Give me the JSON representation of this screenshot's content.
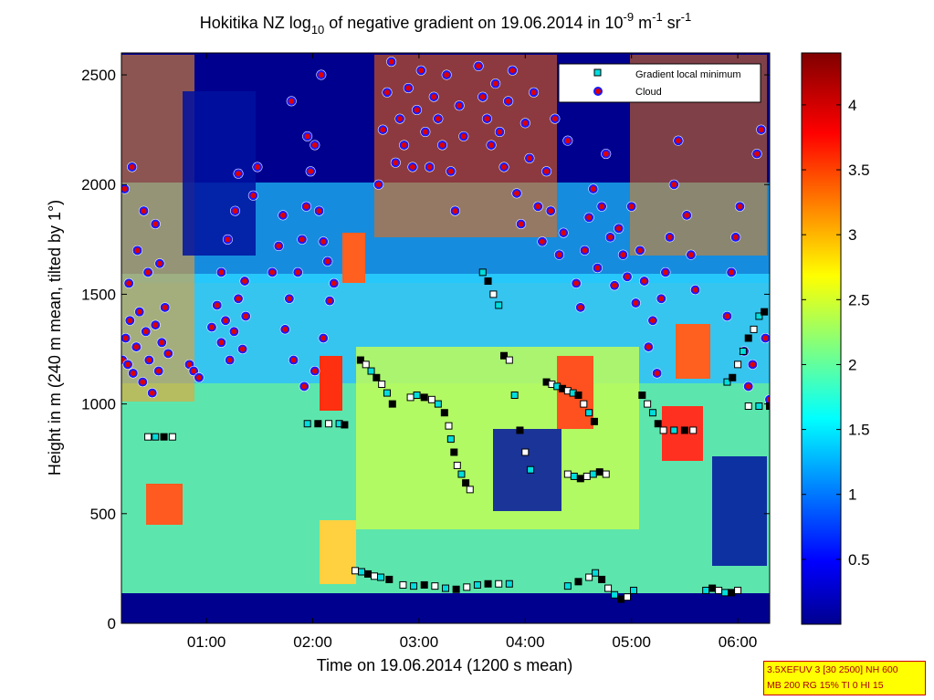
{
  "chart_data": {
    "type": "heatmap",
    "title": {
      "prefix": "Hokitika NZ log",
      "log_sub": "10",
      "middle": " of negative gradient on 19.06.2014 in 10",
      "exp1": "-9",
      "unit1": " m",
      "exp2": "-1",
      "unit2": " sr",
      "exp3": "-1"
    },
    "xlabel": "Time on 19.06.2014 (1200 s mean)",
    "ylabel": "Height in m (240 m mean, tilted by 1°)",
    "x_range_hours": [
      0.2,
      6.3
    ],
    "xticks": [
      {
        "label": "01:00",
        "value": 1
      },
      {
        "label": "02:00",
        "value": 2
      },
      {
        "label": "03:00",
        "value": 3
      },
      {
        "label": "04:00",
        "value": 4
      },
      {
        "label": "05:00",
        "value": 5
      },
      {
        "label": "06:00",
        "value": 6
      }
    ],
    "ylim": [
      0,
      2600
    ],
    "yticks": [
      0,
      500,
      1000,
      1500,
      2000,
      2500
    ],
    "colorbar": {
      "range": [
        0,
        4.4
      ],
      "ticks": [
        0.5,
        1,
        1.5,
        2,
        2.5,
        3,
        3.5,
        4
      ],
      "colormap": "jet"
    },
    "legend": {
      "position": "top-right",
      "entries": [
        {
          "label": "Gradient local minimum",
          "marker": "square",
          "color": "#00dddd"
        },
        {
          "label": "Cloud",
          "marker": "circle",
          "color": "#dd0000"
        }
      ]
    },
    "series": [
      {
        "name": "Cloud",
        "marker": "circle",
        "points": [
          [
            0.21,
            1200
          ],
          [
            0.24,
            1300
          ],
          [
            0.26,
            1180
          ],
          [
            0.28,
            1380
          ],
          [
            0.31,
            1140
          ],
          [
            0.34,
            1260
          ],
          [
            0.37,
            1420
          ],
          [
            0.4,
            1100
          ],
          [
            0.43,
            1330
          ],
          [
            0.46,
            1200
          ],
          [
            0.49,
            1050
          ],
          [
            0.52,
            1360
          ],
          [
            0.55,
            1150
          ],
          [
            0.58,
            1280
          ],
          [
            0.61,
            1440
          ],
          [
            0.64,
            1230
          ],
          [
            0.27,
            1550
          ],
          [
            0.35,
            1700
          ],
          [
            0.45,
            1600
          ],
          [
            0.52,
            1820
          ],
          [
            0.23,
            1980
          ],
          [
            0.3,
            2080
          ],
          [
            0.41,
            1880
          ],
          [
            0.56,
            1640
          ],
          [
            0.84,
            1180
          ],
          [
            0.88,
            1150
          ],
          [
            0.93,
            1120
          ],
          [
            1.05,
            1350
          ],
          [
            1.1,
            1450
          ],
          [
            1.14,
            1280
          ],
          [
            1.18,
            1380
          ],
          [
            1.22,
            1200
          ],
          [
            1.26,
            1330
          ],
          [
            1.3,
            1480
          ],
          [
            1.34,
            1250
          ],
          [
            1.37,
            1400
          ],
          [
            1.14,
            1600
          ],
          [
            1.2,
            1750
          ],
          [
            1.27,
            1880
          ],
          [
            1.3,
            2050
          ],
          [
            1.36,
            1560
          ],
          [
            1.44,
            1950
          ],
          [
            1.48,
            2080
          ],
          [
            1.62,
            1600
          ],
          [
            1.68,
            1720
          ],
          [
            1.72,
            1860
          ],
          [
            1.74,
            1340
          ],
          [
            1.78,
            1480
          ],
          [
            1.82,
            1200
          ],
          [
            1.86,
            1600
          ],
          [
            1.9,
            1750
          ],
          [
            1.94,
            1900
          ],
          [
            1.98,
            2060
          ],
          [
            2.02,
            2180
          ],
          [
            2.06,
            1880
          ],
          [
            2.1,
            1740
          ],
          [
            2.14,
            1650
          ],
          [
            1.92,
            1080
          ],
          [
            2.02,
            1150
          ],
          [
            2.1,
            1300
          ],
          [
            2.16,
            1470
          ],
          [
            1.95,
            2220
          ],
          [
            2.2,
            1550
          ],
          [
            1.8,
            2380
          ],
          [
            2.08,
            2500
          ],
          [
            2.62,
            2000
          ],
          [
            2.66,
            2250
          ],
          [
            2.7,
            2420
          ],
          [
            2.74,
            2560
          ],
          [
            2.78,
            2100
          ],
          [
            2.82,
            2300
          ],
          [
            2.86,
            2180
          ],
          [
            2.9,
            2440
          ],
          [
            2.94,
            2080
          ],
          [
            2.98,
            2340
          ],
          [
            3.02,
            2520
          ],
          [
            3.06,
            2240
          ],
          [
            3.1,
            2080
          ],
          [
            3.14,
            2400
          ],
          [
            3.18,
            2300
          ],
          [
            3.22,
            2180
          ],
          [
            3.26,
            2500
          ],
          [
            3.3,
            2060
          ],
          [
            3.34,
            1880
          ],
          [
            3.38,
            2360
          ],
          [
            3.42,
            2220
          ],
          [
            3.56,
            2540
          ],
          [
            3.6,
            2400
          ],
          [
            3.64,
            2300
          ],
          [
            3.68,
            2180
          ],
          [
            3.72,
            2460
          ],
          [
            3.76,
            2240
          ],
          [
            3.8,
            2080
          ],
          [
            3.84,
            2380
          ],
          [
            3.88,
            2520
          ],
          [
            3.92,
            1960
          ],
          [
            3.96,
            1820
          ],
          [
            4.0,
            2280
          ],
          [
            4.04,
            2120
          ],
          [
            4.08,
            2420
          ],
          [
            4.12,
            1900
          ],
          [
            4.16,
            1740
          ],
          [
            4.2,
            2060
          ],
          [
            4.24,
            1880
          ],
          [
            4.28,
            2300
          ],
          [
            4.32,
            1680
          ],
          [
            4.36,
            1780
          ],
          [
            4.4,
            2200
          ],
          [
            4.48,
            1550
          ],
          [
            4.52,
            1440
          ],
          [
            4.56,
            1700
          ],
          [
            4.6,
            1850
          ],
          [
            4.64,
            1980
          ],
          [
            4.68,
            1620
          ],
          [
            4.72,
            1900
          ],
          [
            4.76,
            2140
          ],
          [
            4.8,
            1760
          ],
          [
            4.84,
            1540
          ],
          [
            4.88,
            1800
          ],
          [
            4.92,
            1680
          ],
          [
            4.96,
            1580
          ],
          [
            5.0,
            1900
          ],
          [
            5.04,
            1460
          ],
          [
            5.08,
            1700
          ],
          [
            5.12,
            1560
          ],
          [
            5.16,
            1260
          ],
          [
            5.2,
            1380
          ],
          [
            5.24,
            1140
          ],
          [
            5.28,
            1480
          ],
          [
            5.32,
            1600
          ],
          [
            5.36,
            1760
          ],
          [
            5.4,
            2000
          ],
          [
            5.44,
            2200
          ],
          [
            5.48,
            2400
          ],
          [
            5.52,
            1860
          ],
          [
            5.56,
            1680
          ],
          [
            5.6,
            1520
          ],
          [
            5.9,
            1400
          ],
          [
            5.94,
            1600
          ],
          [
            5.98,
            1760
          ],
          [
            6.02,
            1900
          ],
          [
            6.06,
            1240
          ],
          [
            6.1,
            1080
          ],
          [
            6.14,
            1180
          ],
          [
            6.18,
            2140
          ],
          [
            6.22,
            2250
          ],
          [
            6.26,
            1300
          ],
          [
            6.3,
            1020
          ]
        ]
      },
      {
        "name": "Gradient local minimum",
        "marker": "square",
        "points": [
          [
            0.45,
            850
          ],
          [
            0.52,
            850
          ],
          [
            0.6,
            850
          ],
          [
            0.68,
            850
          ],
          [
            1.95,
            910
          ],
          [
            2.05,
            910
          ],
          [
            2.15,
            910
          ],
          [
            2.25,
            910
          ],
          [
            2.3,
            905
          ],
          [
            2.4,
            240
          ],
          [
            2.46,
            235
          ],
          [
            2.52,
            225
          ],
          [
            2.58,
            215
          ],
          [
            2.64,
            210
          ],
          [
            2.72,
            200
          ],
          [
            2.85,
            175
          ],
          [
            2.95,
            170
          ],
          [
            3.05,
            175
          ],
          [
            3.15,
            170
          ],
          [
            3.25,
            160
          ],
          [
            3.35,
            155
          ],
          [
            3.45,
            165
          ],
          [
            3.55,
            175
          ],
          [
            3.65,
            180
          ],
          [
            3.75,
            180
          ],
          [
            3.85,
            180
          ],
          [
            2.45,
            1200
          ],
          [
            2.5,
            1180
          ],
          [
            2.55,
            1150
          ],
          [
            2.6,
            1120
          ],
          [
            2.65,
            1090
          ],
          [
            2.7,
            1050
          ],
          [
            2.75,
            1000
          ],
          [
            2.92,
            1030
          ],
          [
            2.98,
            1040
          ],
          [
            3.05,
            1030
          ],
          [
            3.12,
            1020
          ],
          [
            3.18,
            1000
          ],
          [
            3.24,
            960
          ],
          [
            3.28,
            900
          ],
          [
            3.3,
            840
          ],
          [
            3.33,
            780
          ],
          [
            3.36,
            720
          ],
          [
            3.4,
            680
          ],
          [
            3.44,
            640
          ],
          [
            3.48,
            610
          ],
          [
            3.6,
            1600
          ],
          [
            3.65,
            1560
          ],
          [
            3.7,
            1500
          ],
          [
            3.75,
            1450
          ],
          [
            3.8,
            1220
          ],
          [
            3.85,
            1200
          ],
          [
            3.9,
            1040
          ],
          [
            3.95,
            880
          ],
          [
            4.0,
            780
          ],
          [
            4.05,
            700
          ],
          [
            4.2,
            1100
          ],
          [
            4.25,
            1090
          ],
          [
            4.3,
            1080
          ],
          [
            4.35,
            1070
          ],
          [
            4.4,
            1060
          ],
          [
            4.45,
            1050
          ],
          [
            4.5,
            1040
          ],
          [
            4.55,
            1000
          ],
          [
            4.6,
            960
          ],
          [
            4.65,
            920
          ],
          [
            4.4,
            680
          ],
          [
            4.46,
            670
          ],
          [
            4.52,
            660
          ],
          [
            4.58,
            670
          ],
          [
            4.64,
            680
          ],
          [
            4.7,
            690
          ],
          [
            4.76,
            680
          ],
          [
            4.4,
            170
          ],
          [
            4.5,
            190
          ],
          [
            4.6,
            210
          ],
          [
            4.66,
            230
          ],
          [
            4.72,
            200
          ],
          [
            4.78,
            160
          ],
          [
            4.84,
            130
          ],
          [
            4.9,
            110
          ],
          [
            4.96,
            120
          ],
          [
            5.02,
            150
          ],
          [
            5.1,
            1040
          ],
          [
            5.15,
            1000
          ],
          [
            5.2,
            960
          ],
          [
            5.25,
            910
          ],
          [
            5.3,
            880
          ],
          [
            5.4,
            880
          ],
          [
            5.5,
            880
          ],
          [
            5.58,
            880
          ],
          [
            5.7,
            150
          ],
          [
            5.76,
            160
          ],
          [
            5.82,
            150
          ],
          [
            5.88,
            140
          ],
          [
            5.94,
            140
          ],
          [
            6.0,
            150
          ],
          [
            5.9,
            1100
          ],
          [
            5.95,
            1120
          ],
          [
            6.0,
            1180
          ],
          [
            6.05,
            1240
          ],
          [
            6.1,
            1300
          ],
          [
            6.15,
            1340
          ],
          [
            6.2,
            1400
          ],
          [
            6.25,
            1420
          ],
          [
            6.1,
            990
          ],
          [
            6.2,
            990
          ],
          [
            6.3,
            990
          ]
        ]
      }
    ]
  },
  "info_box": {
    "line1": "3.5XEFUV 3 [30 2500] NH 600",
    "line2": "MB 200 RG 15% TI 0 HI 15"
  }
}
